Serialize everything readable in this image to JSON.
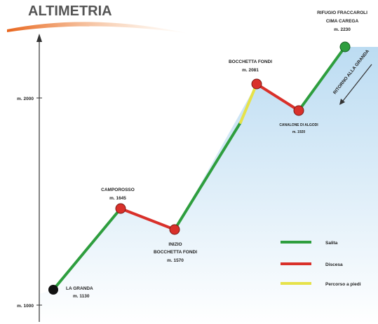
{
  "title": "ALTIMETRIA",
  "axis": {
    "labels": [
      "m. 2000",
      "m. 1000"
    ]
  },
  "nodes": [
    {
      "lines": [
        "LA GRANDA",
        "m. 1130"
      ]
    },
    {
      "lines": [
        "CAMPOROSSO",
        "m. 1645"
      ]
    },
    {
      "lines": [
        "INIZIO",
        "BOCCHETTA FONDI",
        "m. 1570"
      ]
    },
    {
      "lines": [
        "BOCCHETTA FONDI",
        "m. 2081"
      ]
    },
    {
      "lines": [
        "CANALONE DI ALGODI",
        "m. 1920"
      ]
    },
    {
      "lines": [
        "RIFUGIO FRACCAROLI",
        "CIMA CAREGA",
        "m. 2230"
      ]
    }
  ],
  "side_note": "RITORNO ALLA GRANDA",
  "legend": [
    {
      "label": "Salita"
    },
    {
      "label": "Discesa"
    },
    {
      "label": "Percorso a piedi"
    }
  ]
}
